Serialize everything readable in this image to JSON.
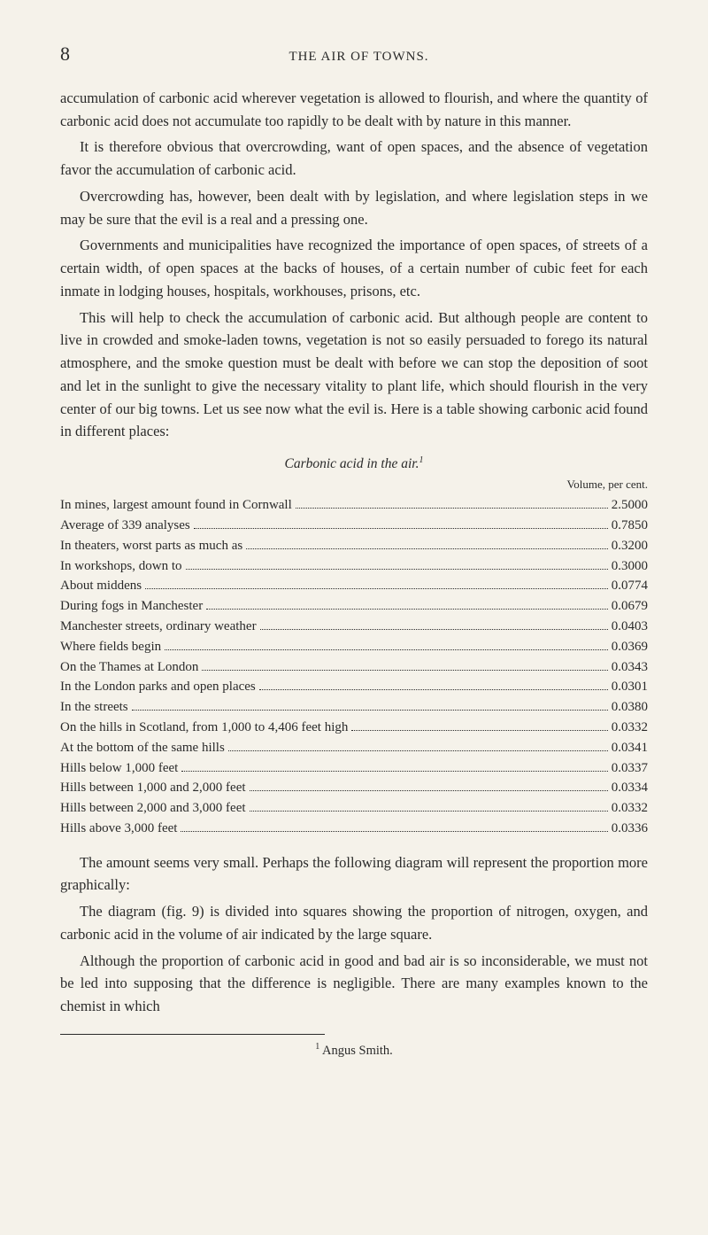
{
  "header": {
    "page_number": "8",
    "running_title": "THE AIR OF TOWNS."
  },
  "paragraphs": {
    "p1": "accumulation of carbonic acid wherever vegetation is allowed to flourish, and where the quantity of carbonic acid does not accumulate too rapidly to be dealt with by nature in this manner.",
    "p2": "It is therefore obvious that overcrowding, want of open spaces, and the absence of vegetation favor the accumulation of carbonic acid.",
    "p3": "Overcrowding has, however, been dealt with by legislation, and where legislation steps in we may be sure that the evil is a real and a pressing one.",
    "p4": "Governments and municipalities have recognized the importance of open spaces, of streets of a certain width, of open spaces at the backs of houses, of a certain number of cubic feet for each inmate in lodging houses, hospitals, workhouses, prisons, etc.",
    "p5": "This will help to check the accumulation of carbonic acid. But although people are content to live in crowded and smoke-laden towns, vegetation is not so easily persuaded to forego its natural atmosphere, and the smoke question must be dealt with before we can stop the deposition of soot and let in the sunlight to give the necessary vitality to plant life, which should flourish in the very center of our big towns. Let us see now what the evil is. Here is a table showing carbonic acid found in different places:",
    "p6": "The amount seems very small. Perhaps the following diagram will represent the proportion more graphically:",
    "p7": "The diagram (fig. 9) is divided into squares showing the proportion of nitrogen, oxygen, and carbonic acid in the volume of air indicated by the large square.",
    "p8": "Although the proportion of carbonic acid in good and bad air is so inconsiderable, we must not be led into supposing that the difference is negligible. There are many examples known to the chemist in which"
  },
  "table": {
    "title_prefix": "Carbonic acid in the air.",
    "title_marker": "1",
    "column_header": "Volume, per cent.",
    "rows": [
      {
        "label": "In mines, largest amount found in Cornwall",
        "value": "2.5000"
      },
      {
        "label": "Average of 339 analyses",
        "value": "0.7850"
      },
      {
        "label": "In theaters, worst parts as much as",
        "value": "0.3200"
      },
      {
        "label": "In workshops, down to",
        "value": "0.3000"
      },
      {
        "label": "About middens",
        "value": "0.0774"
      },
      {
        "label": "During fogs in Manchester",
        "value": "0.0679"
      },
      {
        "label": "Manchester streets, ordinary weather",
        "value": "0.0403"
      },
      {
        "label": "Where fields begin",
        "value": "0.0369"
      },
      {
        "label": "On the Thames at London",
        "value": "0.0343"
      },
      {
        "label": "In the London parks and open places",
        "value": "0.0301"
      },
      {
        "label": "In the streets",
        "value": "0.0380"
      },
      {
        "label": "On the hills in Scotland, from 1,000 to 4,406 feet high",
        "value": "0.0332"
      },
      {
        "label": "At the bottom of the same hills",
        "value": "0.0341"
      },
      {
        "label": "Hills below 1,000 feet",
        "value": "0.0337"
      },
      {
        "label": "Hills between 1,000 and 2,000 feet",
        "value": "0.0334"
      },
      {
        "label": "Hills between 2,000 and 3,000 feet",
        "value": "0.0332"
      },
      {
        "label": "Hills above 3,000 feet",
        "value": "0.0336"
      }
    ]
  },
  "footnote": {
    "marker": "1",
    "text": " Angus Smith."
  }
}
